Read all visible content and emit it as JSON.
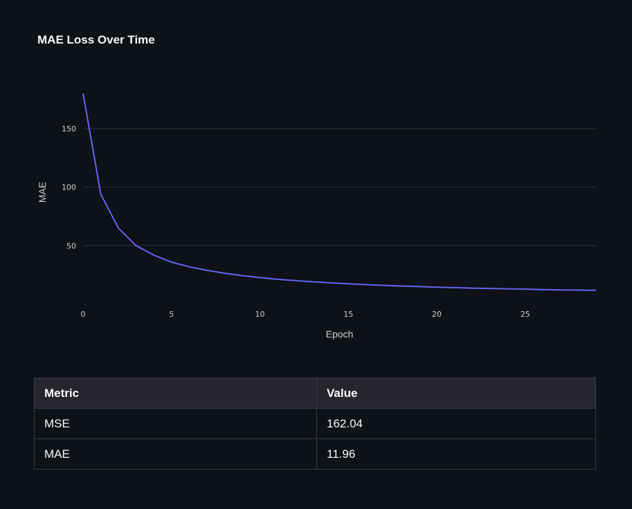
{
  "chart_data": {
    "type": "line",
    "title": "MAE Loss Over Time",
    "xlabel": "Epoch",
    "ylabel": "MAE",
    "xlim": [
      0,
      29
    ],
    "ylim": [
      0,
      180
    ],
    "x_ticks": [
      0,
      5,
      10,
      15,
      20,
      25
    ],
    "y_ticks": [
      50,
      100,
      150
    ],
    "grid": true,
    "color": "#6366f1",
    "series": [
      {
        "x": [
          0,
          1,
          2,
          3,
          4,
          5,
          6,
          7,
          8,
          9,
          10,
          11,
          12,
          13,
          14,
          15,
          16,
          17,
          18,
          19,
          20,
          21,
          22,
          23,
          24,
          25,
          26,
          27,
          28,
          29
        ],
        "values": [
          180,
          94,
          65,
          50,
          42,
          36,
          32,
          29,
          26.5,
          24.5,
          22.8,
          21.3,
          20.2,
          19.2,
          18.3,
          17.5,
          16.8,
          16.2,
          15.6,
          15.1,
          14.6,
          14.2,
          13.8,
          13.5,
          13.2,
          12.9,
          12.6,
          12.3,
          12.1,
          11.96
        ]
      }
    ]
  },
  "table": {
    "headers": [
      "Metric",
      "Value"
    ],
    "rows": [
      [
        "MSE",
        "162.04"
      ],
      [
        "MAE",
        "11.96"
      ]
    ]
  }
}
